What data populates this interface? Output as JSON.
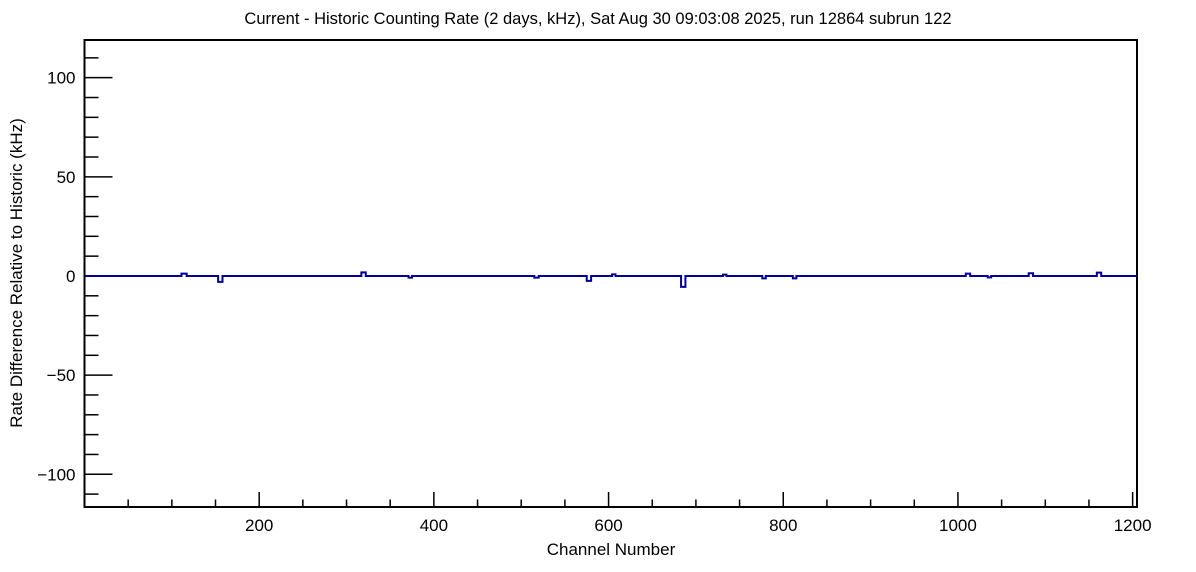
{
  "window": {
    "background_color": "#ffffff"
  },
  "chart_data": {
    "type": "line",
    "title": "Current - Historic Counting Rate (2 days, kHz), Sat Aug 30 09:03:08 2025, run 12864 subrun 122",
    "xlabel": "Channel Number",
    "ylabel": "Rate Difference Relative to Historic (kHz)",
    "xlim": [
      0,
      1205
    ],
    "ylim": [
      -116.5,
      119
    ],
    "grid": false,
    "legend": false,
    "line_color": "#000099",
    "axis_color": "#000000",
    "x_major_ticks": [
      200,
      400,
      600,
      800,
      1000,
      1200
    ],
    "x_tick_labels": [
      "200",
      "400",
      "600",
      "800",
      "1000",
      "1200"
    ],
    "x_minor_step": 50,
    "y_major_ticks": [
      100,
      50,
      0,
      -50,
      -100
    ],
    "y_tick_labels": [
      "100",
      "50",
      "0",
      "−50",
      "−100"
    ],
    "y_minor_step": 10,
    "baseline_value": 0,
    "series_description": "Histogram of rate difference vs channel; flat at 0 kHz with small localized spikes",
    "spikes": [
      {
        "channel_start": 111,
        "channel_end": 117,
        "value": 1.2
      },
      {
        "channel_start": 153,
        "channel_end": 158,
        "value": -3.0
      },
      {
        "channel_start": 317,
        "channel_end": 322,
        "value": 1.8
      },
      {
        "channel_start": 371,
        "channel_end": 375,
        "value": -0.8
      },
      {
        "channel_start": 515,
        "channel_end": 520,
        "value": -0.8
      },
      {
        "channel_start": 575,
        "channel_end": 580,
        "value": -2.5
      },
      {
        "channel_start": 604,
        "channel_end": 608,
        "value": 0.8
      },
      {
        "channel_start": 683,
        "channel_end": 688,
        "value": -5.5
      },
      {
        "channel_start": 731,
        "channel_end": 735,
        "value": 0.7
      },
      {
        "channel_start": 776,
        "channel_end": 780,
        "value": -1.2
      },
      {
        "channel_start": 811,
        "channel_end": 815,
        "value": -1.2
      },
      {
        "channel_start": 1009,
        "channel_end": 1014,
        "value": 1.2
      },
      {
        "channel_start": 1034,
        "channel_end": 1038,
        "value": -0.7
      },
      {
        "channel_start": 1081,
        "channel_end": 1086,
        "value": 1.4
      },
      {
        "channel_start": 1159,
        "channel_end": 1164,
        "value": 1.7
      }
    ]
  }
}
